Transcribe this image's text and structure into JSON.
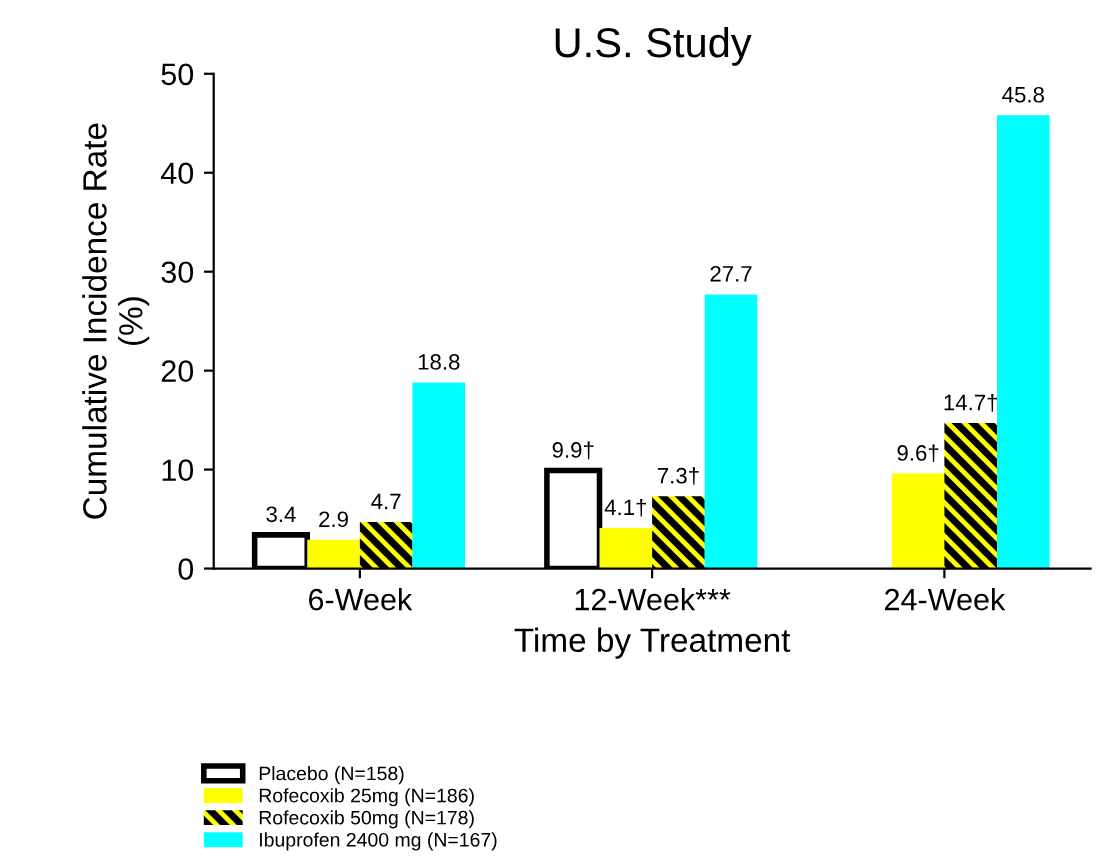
{
  "chart_data": {
    "type": "bar",
    "title": "U.S. Study",
    "xlabel": "Time by Treatment",
    "ylabel": "Cumulative Incidence Rate\n(%)",
    "categories": [
      "6-Week",
      "12-Week***",
      "24-Week"
    ],
    "series": [
      {
        "name": "Placebo (N=158)",
        "color": "#ffffff",
        "values": [
          3.4,
          9.9,
          null
        ],
        "value_labels": [
          "3.4",
          "9.9†",
          null
        ]
      },
      {
        "name": "Rofecoxib 25mg (N=186)",
        "color": "#ffff00",
        "values": [
          2.9,
          4.1,
          9.6
        ],
        "value_labels": [
          "2.9",
          "4.1†",
          "9.6†"
        ]
      },
      {
        "name": "Rofecoxib 50mg (N=178)",
        "color": "#ffff00",
        "values": [
          4.7,
          7.3,
          14.7
        ],
        "value_labels": [
          "4.7",
          "7.3†",
          "14.7†"
        ]
      },
      {
        "name": "Ibuprofen 2400 mg (N=167)",
        "color": "#00ffff",
        "values": [
          18.8,
          27.7,
          45.8
        ],
        "value_labels": [
          "18.8",
          "27.7",
          "45.8"
        ]
      }
    ],
    "ylim": [
      0,
      50
    ],
    "yticks": [
      0,
      10,
      20,
      30,
      40,
      50
    ],
    "grid": false,
    "legend": "bottom left"
  }
}
